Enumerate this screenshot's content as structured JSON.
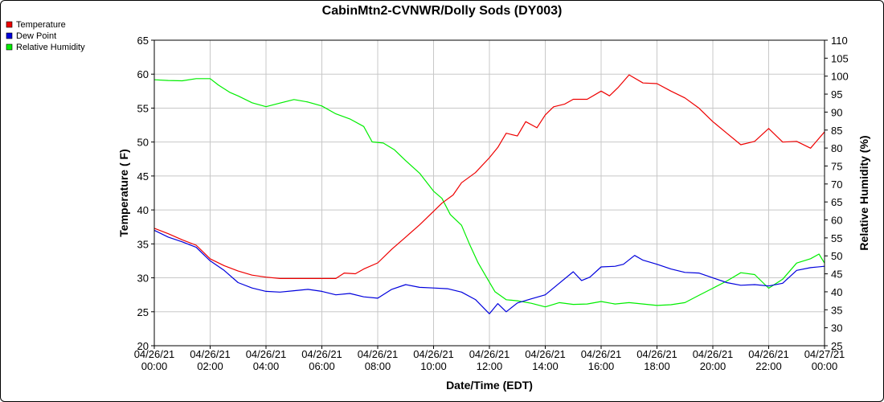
{
  "chart_data": {
    "type": "line",
    "title": "CabinMtn2-CVNWR/Dolly Sods (DY003)",
    "xlabel": "Date/Time (EDT)",
    "ylabel": "Temperature ( F)",
    "y2label": "Relative Humidity (%)",
    "xlim_hours": [
      0,
      24
    ],
    "ylim": [
      20,
      65
    ],
    "y2lim": [
      25,
      110
    ],
    "grid": true,
    "legend_position": "top-left",
    "x_ticks": [
      {
        "date": "04/26/21",
        "time": "00:00"
      },
      {
        "date": "04/26/21",
        "time": "02:00"
      },
      {
        "date": "04/26/21",
        "time": "04:00"
      },
      {
        "date": "04/26/21",
        "time": "06:00"
      },
      {
        "date": "04/26/21",
        "time": "08:00"
      },
      {
        "date": "04/26/21",
        "time": "10:00"
      },
      {
        "date": "04/26/21",
        "time": "12:00"
      },
      {
        "date": "04/26/21",
        "time": "14:00"
      },
      {
        "date": "04/26/21",
        "time": "16:00"
      },
      {
        "date": "04/26/21",
        "time": "18:00"
      },
      {
        "date": "04/26/21",
        "time": "20:00"
      },
      {
        "date": "04/26/21",
        "time": "22:00"
      },
      {
        "date": "04/27/21",
        "time": "00:00"
      }
    ],
    "y_ticks": [
      "20",
      "25",
      "30",
      "35",
      "40",
      "45",
      "50",
      "55",
      "60",
      "65"
    ],
    "y2_ticks": [
      "25",
      "30",
      "35",
      "40",
      "45",
      "50",
      "55",
      "60",
      "65",
      "70",
      "75",
      "80",
      "85",
      "90",
      "95",
      "100",
      "105",
      "110"
    ],
    "series": [
      {
        "name": "Temperature",
        "axis": "left",
        "color": "#ee0000",
        "points": [
          [
            0,
            37.3
          ],
          [
            0.5,
            36.5
          ],
          [
            1,
            35.6
          ],
          [
            1.5,
            34.8
          ],
          [
            2,
            32.8
          ],
          [
            2.5,
            31.8
          ],
          [
            3,
            31.0
          ],
          [
            3.5,
            30.4
          ],
          [
            4,
            30.1
          ],
          [
            4.5,
            29.9
          ],
          [
            5,
            29.9
          ],
          [
            5.5,
            29.9
          ],
          [
            6,
            29.9
          ],
          [
            6.5,
            29.9
          ],
          [
            6.8,
            30.7
          ],
          [
            7.2,
            30.6
          ],
          [
            7.5,
            31.3
          ],
          [
            8,
            32.2
          ],
          [
            8.5,
            34.2
          ],
          [
            9,
            36.0
          ],
          [
            9.5,
            37.8
          ],
          [
            10,
            39.8
          ],
          [
            10.3,
            41.0
          ],
          [
            10.7,
            42.2
          ],
          [
            11,
            44.0
          ],
          [
            11.5,
            45.5
          ],
          [
            12,
            47.7
          ],
          [
            12.3,
            49.2
          ],
          [
            12.6,
            51.3
          ],
          [
            13,
            50.9
          ],
          [
            13.3,
            53.0
          ],
          [
            13.7,
            52.1
          ],
          [
            14,
            54.0
          ],
          [
            14.3,
            55.2
          ],
          [
            14.7,
            55.6
          ],
          [
            15,
            56.3
          ],
          [
            15.5,
            56.3
          ],
          [
            16,
            57.5
          ],
          [
            16.3,
            56.8
          ],
          [
            16.6,
            58.0
          ],
          [
            17,
            59.9
          ],
          [
            17.5,
            58.7
          ],
          [
            18,
            58.6
          ],
          [
            18.5,
            57.5
          ],
          [
            19,
            56.5
          ],
          [
            19.5,
            55.0
          ],
          [
            20,
            53.0
          ],
          [
            20.5,
            51.3
          ],
          [
            21,
            49.6
          ],
          [
            21.5,
            50.1
          ],
          [
            22,
            52.0
          ],
          [
            22.5,
            50.0
          ],
          [
            23,
            50.1
          ],
          [
            23.5,
            49.1
          ],
          [
            24,
            51.5
          ]
        ]
      },
      {
        "name": "Dew Point",
        "axis": "left",
        "color": "#0000dd",
        "points": [
          [
            0,
            37.0
          ],
          [
            0.5,
            36.0
          ],
          [
            1,
            35.3
          ],
          [
            1.5,
            34.5
          ],
          [
            2,
            32.5
          ],
          [
            2.5,
            31.1
          ],
          [
            3,
            29.3
          ],
          [
            3.5,
            28.5
          ],
          [
            4,
            28.0
          ],
          [
            4.5,
            27.9
          ],
          [
            5,
            28.1
          ],
          [
            5.5,
            28.3
          ],
          [
            6,
            28.0
          ],
          [
            6.5,
            27.5
          ],
          [
            7,
            27.7
          ],
          [
            7.5,
            27.2
          ],
          [
            8,
            27.0
          ],
          [
            8.5,
            28.3
          ],
          [
            9,
            29.0
          ],
          [
            9.5,
            28.6
          ],
          [
            10,
            28.5
          ],
          [
            10.5,
            28.4
          ],
          [
            11,
            27.9
          ],
          [
            11.5,
            26.8
          ],
          [
            12,
            24.7
          ],
          [
            12.3,
            26.2
          ],
          [
            12.6,
            25.0
          ],
          [
            13,
            26.3
          ],
          [
            13.5,
            26.9
          ],
          [
            14,
            27.5
          ],
          [
            14.5,
            29.2
          ],
          [
            15,
            30.9
          ],
          [
            15.3,
            29.6
          ],
          [
            15.6,
            30.1
          ],
          [
            16,
            31.6
          ],
          [
            16.5,
            31.7
          ],
          [
            16.8,
            32.0
          ],
          [
            17.2,
            33.3
          ],
          [
            17.5,
            32.6
          ],
          [
            18,
            32.0
          ],
          [
            18.5,
            31.3
          ],
          [
            19,
            30.8
          ],
          [
            19.5,
            30.7
          ],
          [
            20,
            30.0
          ],
          [
            20.5,
            29.3
          ],
          [
            21,
            28.9
          ],
          [
            21.5,
            29.0
          ],
          [
            22,
            28.8
          ],
          [
            22.5,
            29.2
          ],
          [
            23,
            31.1
          ],
          [
            23.5,
            31.5
          ],
          [
            24,
            31.7
          ]
        ]
      },
      {
        "name": "Relative Humidity",
        "axis": "right",
        "color": "#00ee00",
        "points": [
          [
            0,
            99
          ],
          [
            0.5,
            98.8
          ],
          [
            1,
            98.7
          ],
          [
            1.5,
            99.3
          ],
          [
            2,
            99.3
          ],
          [
            2.3,
            97.5
          ],
          [
            2.7,
            95.5
          ],
          [
            3,
            94.5
          ],
          [
            3.5,
            92.6
          ],
          [
            4,
            91.5
          ],
          [
            4.5,
            92.5
          ],
          [
            5,
            93.5
          ],
          [
            5.5,
            92.8
          ],
          [
            6,
            91.7
          ],
          [
            6.5,
            89.5
          ],
          [
            7,
            88.1
          ],
          [
            7.5,
            86.0
          ],
          [
            7.8,
            81.7
          ],
          [
            8.2,
            81.4
          ],
          [
            8.6,
            79.5
          ],
          [
            9,
            76.5
          ],
          [
            9.5,
            73.0
          ],
          [
            10,
            68.0
          ],
          [
            10.3,
            66.0
          ],
          [
            10.6,
            61.5
          ],
          [
            11,
            58.5
          ],
          [
            11.3,
            53.0
          ],
          [
            11.6,
            48.0
          ],
          [
            11.9,
            44.0
          ],
          [
            12.2,
            40.0
          ],
          [
            12.6,
            37.8
          ],
          [
            13,
            37.5
          ],
          [
            13.5,
            36.8
          ],
          [
            14,
            35.8
          ],
          [
            14.5,
            37.0
          ],
          [
            15,
            36.5
          ],
          [
            15.5,
            36.6
          ],
          [
            16,
            37.3
          ],
          [
            16.5,
            36.6
          ],
          [
            17,
            37.0
          ],
          [
            17.5,
            36.6
          ],
          [
            18,
            36.2
          ],
          [
            18.5,
            36.4
          ],
          [
            19,
            37.0
          ],
          [
            19.5,
            39.0
          ],
          [
            20,
            41.0
          ],
          [
            20.5,
            43.0
          ],
          [
            21,
            45.3
          ],
          [
            21.5,
            44.8
          ],
          [
            22,
            41.0
          ],
          [
            22.5,
            43.5
          ],
          [
            23,
            48.0
          ],
          [
            23.5,
            49.2
          ],
          [
            23.8,
            50.5
          ],
          [
            24,
            48.0
          ]
        ]
      }
    ]
  }
}
